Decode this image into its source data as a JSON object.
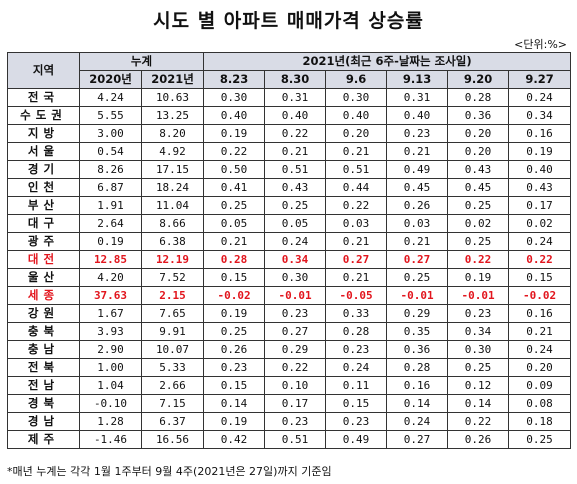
{
  "title": "시도 별 아파트 매매가격 상승률",
  "unit": "<단위:%>",
  "headers": {
    "region": "지역",
    "cumulative": "누계",
    "weekly": "2021년(최근 6주-날짜는 조사일)",
    "columns": [
      "2020년",
      "2021년",
      "8.23",
      "8.30",
      "9.6",
      "9.13",
      "9.20",
      "9.27"
    ]
  },
  "highlight_color": "#e2161e",
  "header_bg": "#d9dce6",
  "rows": [
    {
      "region": "전국",
      "values": [
        "4.24",
        "10.63",
        "0.30",
        "0.31",
        "0.30",
        "0.31",
        "0.28",
        "0.24"
      ],
      "highlight": false
    },
    {
      "region": "수도권",
      "values": [
        "5.55",
        "13.25",
        "0.40",
        "0.40",
        "0.40",
        "0.40",
        "0.36",
        "0.34"
      ],
      "highlight": false
    },
    {
      "region": "지방",
      "values": [
        "3.00",
        "8.20",
        "0.19",
        "0.22",
        "0.20",
        "0.23",
        "0.20",
        "0.16"
      ],
      "highlight": false
    },
    {
      "region": "서울",
      "values": [
        "0.54",
        "4.92",
        "0.22",
        "0.21",
        "0.21",
        "0.21",
        "0.20",
        "0.19"
      ],
      "highlight": false
    },
    {
      "region": "경기",
      "values": [
        "8.26",
        "17.15",
        "0.50",
        "0.51",
        "0.51",
        "0.49",
        "0.43",
        "0.40"
      ],
      "highlight": false
    },
    {
      "region": "인천",
      "values": [
        "6.87",
        "18.24",
        "0.41",
        "0.43",
        "0.44",
        "0.45",
        "0.45",
        "0.43"
      ],
      "highlight": false
    },
    {
      "region": "부산",
      "values": [
        "1.91",
        "11.04",
        "0.25",
        "0.25",
        "0.22",
        "0.26",
        "0.25",
        "0.17"
      ],
      "highlight": false
    },
    {
      "region": "대구",
      "values": [
        "2.64",
        "8.66",
        "0.05",
        "0.05",
        "0.03",
        "0.03",
        "0.02",
        "0.02"
      ],
      "highlight": false
    },
    {
      "region": "광주",
      "values": [
        "0.19",
        "6.38",
        "0.21",
        "0.24",
        "0.21",
        "0.21",
        "0.25",
        "0.24"
      ],
      "highlight": false
    },
    {
      "region": "대전",
      "values": [
        "12.85",
        "12.19",
        "0.28",
        "0.34",
        "0.27",
        "0.27",
        "0.22",
        "0.22"
      ],
      "highlight": true
    },
    {
      "region": "울산",
      "values": [
        "4.20",
        "7.52",
        "0.15",
        "0.30",
        "0.21",
        "0.25",
        "0.19",
        "0.15"
      ],
      "highlight": false
    },
    {
      "region": "세종",
      "values": [
        "37.63",
        "2.15",
        "-0.02",
        "-0.01",
        "-0.05",
        "-0.01",
        "-0.01",
        "-0.02"
      ],
      "highlight": true
    },
    {
      "region": "강원",
      "values": [
        "1.67",
        "7.65",
        "0.19",
        "0.23",
        "0.33",
        "0.29",
        "0.23",
        "0.16"
      ],
      "highlight": false
    },
    {
      "region": "충북",
      "values": [
        "3.93",
        "9.91",
        "0.25",
        "0.27",
        "0.28",
        "0.35",
        "0.34",
        "0.21"
      ],
      "highlight": false
    },
    {
      "region": "충남",
      "values": [
        "2.90",
        "10.07",
        "0.26",
        "0.29",
        "0.23",
        "0.36",
        "0.30",
        "0.24"
      ],
      "highlight": false
    },
    {
      "region": "전북",
      "values": [
        "1.00",
        "5.33",
        "0.23",
        "0.22",
        "0.24",
        "0.28",
        "0.25",
        "0.20"
      ],
      "highlight": false
    },
    {
      "region": "전남",
      "values": [
        "1.04",
        "2.66",
        "0.15",
        "0.10",
        "0.11",
        "0.16",
        "0.12",
        "0.09"
      ],
      "highlight": false
    },
    {
      "region": "경북",
      "values": [
        "-0.10",
        "7.15",
        "0.14",
        "0.17",
        "0.15",
        "0.14",
        "0.14",
        "0.08"
      ],
      "highlight": false
    },
    {
      "region": "경남",
      "values": [
        "1.28",
        "6.37",
        "0.19",
        "0.23",
        "0.23",
        "0.24",
        "0.22",
        "0.18"
      ],
      "highlight": false
    },
    {
      "region": "제주",
      "values": [
        "-1.46",
        "16.56",
        "0.42",
        "0.51",
        "0.49",
        "0.27",
        "0.26",
        "0.25"
      ],
      "highlight": false
    }
  ],
  "footnote": "*매년 누계는 각각 1월 1주부터 9월 4주(2021년은 27일)까지 기준임"
}
